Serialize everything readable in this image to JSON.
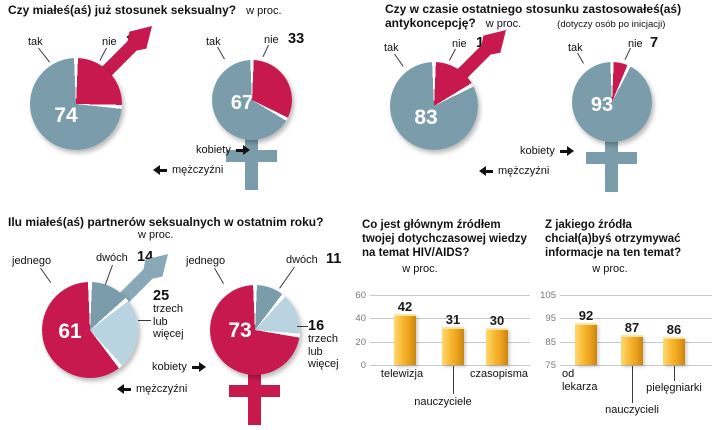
{
  "palette": {
    "teal": "#7b9dab",
    "red": "#c8194e",
    "light_blue": "#b9d3e0",
    "bar_yellow": "#f6b32b",
    "grid": "#c9c9c9"
  },
  "legend": {
    "female": "kobiety",
    "male": "mężczyźni"
  },
  "sections": {
    "q1": {
      "title": "Czy miałeś(aś) już stosunek seksualny?",
      "unit": "w proc."
    },
    "q2": {
      "title_line1": "Czy w czasie ostatniego stosunku zastosowałeś(aś)",
      "title_line2": "antykoncepcję?",
      "unit": "w proc.",
      "note": "(dotyczy osób po inicjacji)"
    },
    "q3": {
      "title": "Ilu miałeś(aś) partnerów seksualnych w ostatnim roku?",
      "unit": "w proc."
    }
  },
  "chart_data": [
    {
      "type": "pie",
      "gender": "mężczyźni",
      "slices": [
        {
          "label": "nie",
          "value": 26,
          "color": "#c8194e"
        },
        {
          "label": "tak",
          "value": 74,
          "color": "#7b9dab"
        }
      ],
      "symbol": "male",
      "symbol_color": "#c8194e"
    },
    {
      "type": "pie",
      "gender": "kobiety",
      "slices": [
        {
          "label": "nie",
          "value": 33,
          "color": "#c8194e"
        },
        {
          "label": "tak",
          "value": 67,
          "color": "#7b9dab"
        }
      ],
      "symbol": "female",
      "symbol_color": "#7b9dab"
    },
    {
      "type": "pie",
      "gender": "mężczyźni",
      "slices": [
        {
          "label": "nie",
          "value": 17,
          "color": "#c8194e"
        },
        {
          "label": "tak",
          "value": 83,
          "color": "#7b9dab"
        }
      ],
      "symbol": "male",
      "symbol_color": "#c8194e"
    },
    {
      "type": "pie",
      "gender": "kobiety",
      "slices": [
        {
          "label": "nie",
          "value": 7,
          "color": "#c8194e"
        },
        {
          "label": "tak",
          "value": 93,
          "color": "#7b9dab"
        }
      ],
      "symbol": "female",
      "symbol_color": "#7b9dab"
    },
    {
      "type": "pie",
      "gender": "mężczyźni",
      "slices": [
        {
          "label": "dwóch",
          "value": 14,
          "color": "#7b9dab"
        },
        {
          "label": "trzech lub więcej",
          "value": 25,
          "color": "#b9d3e0"
        },
        {
          "label": "jednego",
          "value": 61,
          "color": "#c8194e"
        }
      ],
      "symbol": "male",
      "symbol_color": "#8aa9b8"
    },
    {
      "type": "pie",
      "gender": "kobiety",
      "slices": [
        {
          "label": "dwóch",
          "value": 11,
          "color": "#7b9dab"
        },
        {
          "label": "trzech lub więcej",
          "value": 16,
          "color": "#b9d3e0"
        },
        {
          "label": "jednego",
          "value": 73,
          "color": "#c8194e"
        }
      ],
      "symbol": "female",
      "symbol_color": "#c8194e"
    },
    {
      "type": "bar",
      "title": "Co jest głównym źródłem twojej dotychczasowej wiedzy na temat HIV/AIDS?",
      "unit": "w proc.",
      "categories": [
        "telewizja",
        "nauczyciele",
        "czasopisma"
      ],
      "values": [
        42,
        31,
        30
      ],
      "ylim": [
        0,
        60
      ],
      "yticks": [
        0,
        20,
        40,
        60
      ]
    },
    {
      "type": "bar",
      "title": "Z jakiego źródła chciał(a)byś otrzymywać informacje na ten temat?",
      "unit": "w proc.",
      "categories": [
        "od lekarza",
        "nauczycieli",
        "pielęgniarki"
      ],
      "values": [
        92,
        87,
        86
      ],
      "ylim": [
        75,
        105
      ],
      "yticks": [
        75,
        85,
        95,
        105
      ]
    }
  ]
}
